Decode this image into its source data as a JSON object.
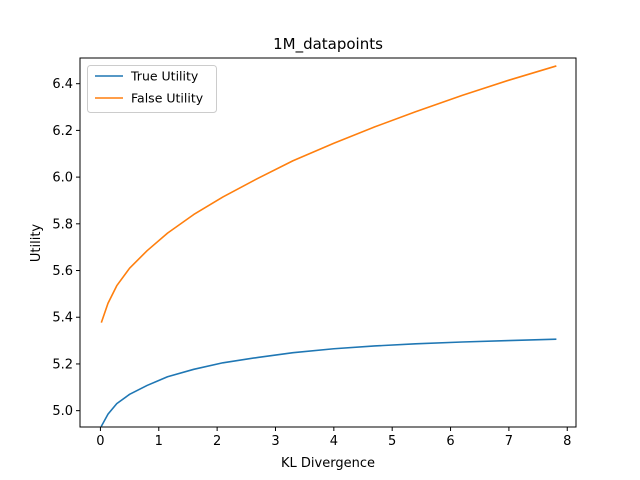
{
  "chart_data": {
    "type": "line",
    "title": "1M_datapoints",
    "xlabel": "KL Divergence",
    "ylabel": "Utility",
    "xlim": [
      -0.35,
      8.15
    ],
    "ylim": [
      4.93,
      6.51
    ],
    "xticks": [
      0,
      1,
      2,
      3,
      4,
      5,
      6,
      7,
      8
    ],
    "yticks": [
      5.0,
      5.2,
      5.4,
      5.6,
      5.8,
      6.0,
      6.2,
      6.4
    ],
    "ytick_labels": [
      "5.0",
      "5.2",
      "5.4",
      "5.6",
      "5.8",
      "6.0",
      "6.2",
      "6.4"
    ],
    "grid": false,
    "legend_position": "top-left",
    "series": [
      {
        "name": "True Utility",
        "color": "#1f77b4",
        "x": [
          0.02,
          0.13,
          0.28,
          0.5,
          0.8,
          1.15,
          1.6,
          2.1,
          2.7,
          3.3,
          4.0,
          4.7,
          5.4,
          6.2,
          7.0,
          7.8
        ],
        "y": [
          4.935,
          4.985,
          5.03,
          5.07,
          5.108,
          5.145,
          5.177,
          5.205,
          5.228,
          5.248,
          5.265,
          5.277,
          5.286,
          5.294,
          5.3,
          5.306
        ]
      },
      {
        "name": "False Utility",
        "color": "#ff7f0e",
        "x": [
          0.02,
          0.13,
          0.28,
          0.5,
          0.8,
          1.15,
          1.6,
          2.1,
          2.7,
          3.3,
          4.0,
          4.7,
          5.4,
          6.2,
          7.0,
          7.8
        ],
        "y": [
          5.38,
          5.46,
          5.535,
          5.61,
          5.685,
          5.76,
          5.84,
          5.915,
          5.995,
          6.07,
          6.145,
          6.215,
          6.28,
          6.35,
          6.415,
          6.475
        ]
      }
    ]
  }
}
